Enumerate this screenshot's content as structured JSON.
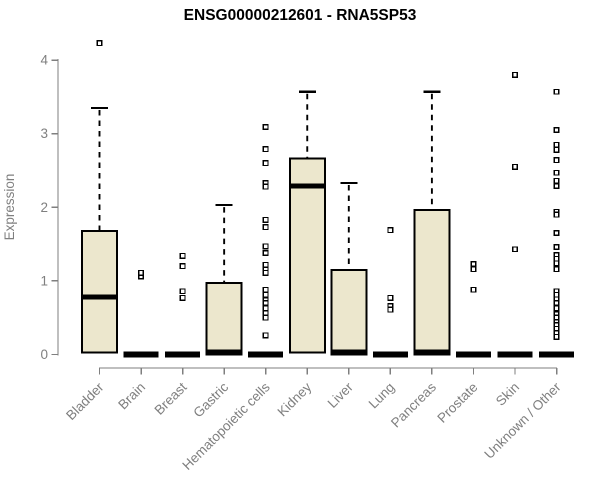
{
  "chart_data": {
    "type": "boxplot",
    "title": "ENSG00000212601 - RNA5SP53",
    "xlabel": "",
    "ylabel": "Expression",
    "ylim": [
      0,
      4.3
    ],
    "yticks": [
      0,
      1,
      2,
      3,
      4
    ],
    "grid": false,
    "legend": "none",
    "categories": [
      "Bladder",
      "Brain",
      "Breast",
      "Gastric",
      "Hematopoietic cells",
      "Kidney",
      "Liver",
      "Lung",
      "Pancreas",
      "Prostate",
      "Skin",
      "Unknown / Other"
    ],
    "series": [
      {
        "name": "Bladder",
        "q1": 0.03,
        "median": 0.78,
        "q3": 1.68,
        "whisker_low": 0.03,
        "whisker_high": 3.35,
        "outliers": [
          4.23
        ]
      },
      {
        "name": "Brain",
        "q1": 0,
        "median": 0,
        "q3": 0,
        "whisker_low": 0,
        "whisker_high": 0,
        "outliers": [
          1.06,
          1.11
        ]
      },
      {
        "name": "Breast",
        "q1": 0,
        "median": 0,
        "q3": 0,
        "whisker_low": 0,
        "whisker_high": 0,
        "outliers": [
          1.34,
          1.2,
          0.86,
          0.77
        ]
      },
      {
        "name": "Gastric",
        "q1": 0,
        "median": 0,
        "q3": 0.97,
        "whisker_low": 0,
        "whisker_high": 2.03,
        "outliers": []
      },
      {
        "name": "Hematopoietic cells",
        "q1": 0,
        "median": 0,
        "q3": 0,
        "whisker_low": 0,
        "whisker_high": 0,
        "outliers": [
          3.09,
          2.79,
          2.6,
          2.33,
          2.28,
          1.83,
          1.73,
          1.47,
          1.38,
          1.22,
          1.15,
          1.11,
          0.88,
          0.81,
          0.74,
          0.7,
          0.63,
          0.56,
          0.5,
          0.26
        ]
      },
      {
        "name": "Kidney",
        "q1": 0.03,
        "median": 2.29,
        "q3": 2.66,
        "whisker_low": 0.03,
        "whisker_high": 3.57,
        "outliers": []
      },
      {
        "name": "Liver",
        "q1": 0,
        "median": 0,
        "q3": 1.15,
        "whisker_low": 0,
        "whisker_high": 2.33,
        "outliers": []
      },
      {
        "name": "Lung",
        "q1": 0,
        "median": 0,
        "q3": 0,
        "whisker_low": 0,
        "whisker_high": 0,
        "outliers": [
          1.69,
          0.77,
          0.66,
          0.61
        ]
      },
      {
        "name": "Pancreas",
        "q1": 0,
        "median": 0,
        "q3": 1.96,
        "whisker_low": 0,
        "whisker_high": 3.57,
        "outliers": []
      },
      {
        "name": "Prostate",
        "q1": 0,
        "median": 0,
        "q3": 0,
        "whisker_low": 0,
        "whisker_high": 0,
        "outliers": [
          1.23,
          1.16,
          0.88
        ]
      },
      {
        "name": "Skin",
        "q1": 0,
        "median": 0,
        "q3": 0,
        "whisker_low": 0,
        "whisker_high": 0,
        "outliers": [
          3.8,
          2.55,
          1.43
        ]
      },
      {
        "name": "Unknown / Other",
        "q1": 0,
        "median": 0,
        "q3": 0,
        "whisker_low": 0,
        "whisker_high": 0,
        "outliers": [
          3.57,
          3.05,
          2.85,
          2.78,
          2.64,
          2.47,
          2.36,
          2.29,
          1.94,
          1.9,
          1.65,
          1.46,
          1.35,
          1.3,
          1.24,
          1.16,
          0.86,
          0.81,
          0.75,
          0.7,
          0.63,
          0.55,
          0.5,
          0.44,
          0.4,
          0.35,
          0.29,
          0.24
        ]
      }
    ]
  },
  "colors": {
    "box_fill": "#ece7cd",
    "box_stroke": "#000000",
    "median": "#000000",
    "outlier_stroke": "#000000",
    "outlier_fill": "#ffffff",
    "axis": "#7f7f7f",
    "tick_text": "#7f7f7f",
    "title_text": "#000000",
    "background": "#ffffff"
  }
}
